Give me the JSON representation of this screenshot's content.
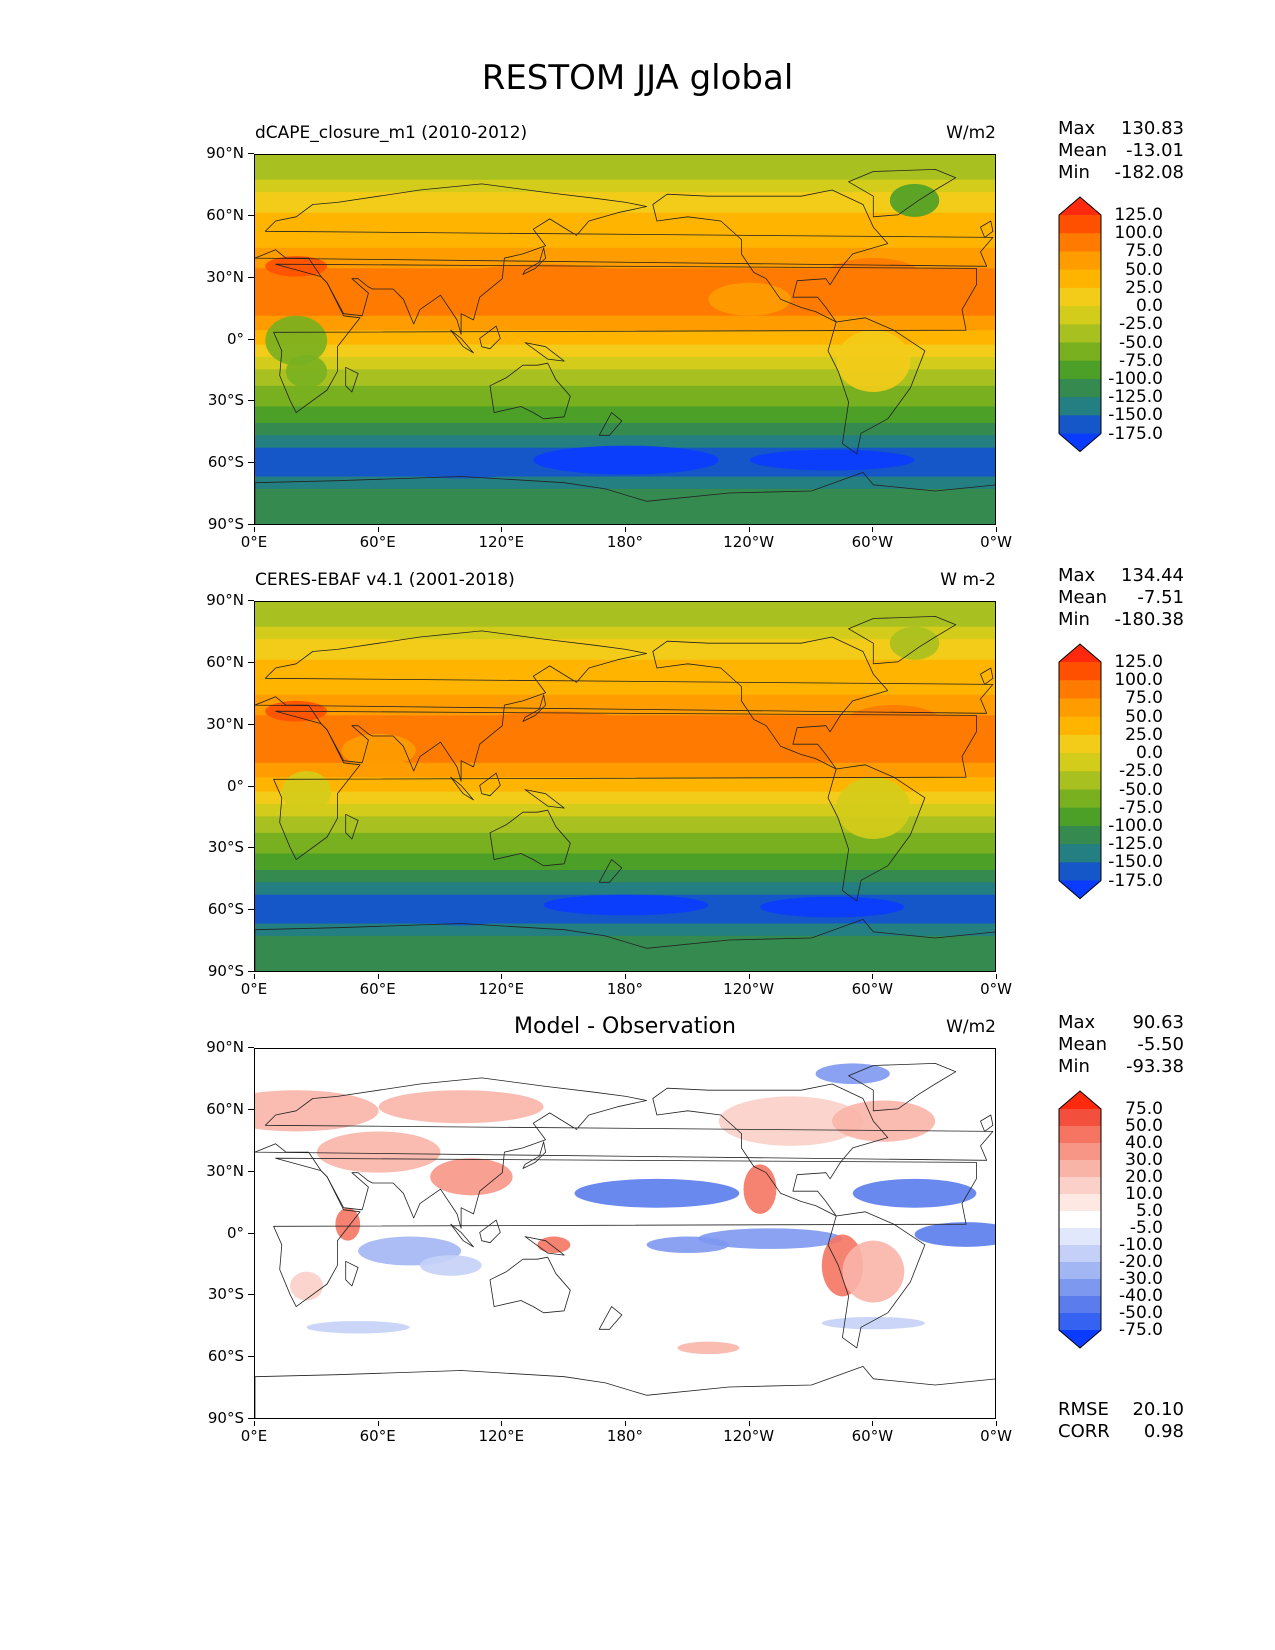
{
  "figure_title": "RESTOM JJA global",
  "x_ticks": [
    "0°E",
    "60°E",
    "120°E",
    "180°",
    "120°W",
    "60°W",
    "0°W"
  ],
  "y_ticks": [
    "90°N",
    "60°N",
    "30°N",
    "0°",
    "30°S",
    "60°S",
    "90°S"
  ],
  "panels": [
    {
      "title": "dCAPE_closure_m1 (2010-2012)",
      "center_title": "",
      "units": "W/m2",
      "stats": {
        "max_label": "Max",
        "max": "130.83",
        "mean_label": "Mean",
        "mean": "-13.01",
        "min_label": "Min",
        "min": "-182.08"
      },
      "extra_stats": null,
      "colorbar": {
        "labels": [
          "125.0",
          "100.0",
          "75.0",
          "50.0",
          "25.0",
          "0.0",
          "-25.0",
          "-50.0",
          "-75.0",
          "-100.0",
          "-125.0",
          "-150.0",
          "-175.0"
        ],
        "colors": [
          "#ff2a0d",
          "#ff5000",
          "#ff7a00",
          "#ff9c00",
          "#ffb400",
          "#f3cc1a",
          "#d4cc1a",
          "#a8c020",
          "#78b020",
          "#4ca028",
          "#358a50",
          "#247f82",
          "#1556c8",
          "#0a3cff"
        ]
      }
    },
    {
      "title": "CERES-EBAF v4.1 (2001-2018)",
      "center_title": "",
      "units": "W m-2",
      "stats": {
        "max_label": "Max",
        "max": "134.44",
        "mean_label": "Mean",
        "mean": "-7.51",
        "min_label": "Min",
        "min": "-180.38"
      },
      "extra_stats": null,
      "colorbar": {
        "labels": [
          "125.0",
          "100.0",
          "75.0",
          "50.0",
          "25.0",
          "0.0",
          "-25.0",
          "-50.0",
          "-75.0",
          "-100.0",
          "-125.0",
          "-150.0",
          "-175.0"
        ],
        "colors": [
          "#ff2a0d",
          "#ff5000",
          "#ff7a00",
          "#ff9c00",
          "#ffb400",
          "#f3cc1a",
          "#d4cc1a",
          "#a8c020",
          "#78b020",
          "#4ca028",
          "#358a50",
          "#247f82",
          "#1556c8",
          "#0a3cff"
        ]
      }
    },
    {
      "title": "",
      "center_title": "Model - Observation",
      "units": "W/m2",
      "stats": {
        "max_label": "Max",
        "max": "90.63",
        "mean_label": "Mean",
        "mean": "-5.50",
        "min_label": "Min",
        "min": "-93.38"
      },
      "extra_stats": {
        "rmse_label": "RMSE",
        "rmse": "20.10",
        "corr_label": "CORR",
        "corr": "0.98"
      },
      "colorbar": {
        "labels": [
          "75.0",
          "50.0",
          "40.0",
          "30.0",
          "20.0",
          "10.0",
          "5.0",
          "-5.0",
          "-10.0",
          "-20.0",
          "-30.0",
          "-40.0",
          "-50.0",
          "-75.0"
        ],
        "colors": [
          "#ff2a0d",
          "#f2503c",
          "#f57462",
          "#f79686",
          "#f9b4a8",
          "#fbd0c8",
          "#fde8e4",
          "#ffffff",
          "#e2e8fb",
          "#c4d0f7",
          "#a2b6f3",
          "#7d98ef",
          "#5a7cec",
          "#3562f0",
          "#0a3cff"
        ]
      }
    }
  ],
  "map_layers": {
    "restom_bands": [
      {
        "lat": 90,
        "c": "#a8c020"
      },
      {
        "lat": 78,
        "c": "#d4cc1a"
      },
      {
        "lat": 72,
        "c": "#f3cc1a"
      },
      {
        "lat": 62,
        "c": "#ffb400"
      },
      {
        "lat": 45,
        "c": "#ff9c00"
      },
      {
        "lat": 35,
        "c": "#ff7a00"
      },
      {
        "lat": 12,
        "c": "#ff9c00"
      },
      {
        "lat": 5,
        "c": "#ffb400"
      },
      {
        "lat": -2,
        "c": "#f3cc1a"
      },
      {
        "lat": -8,
        "c": "#d4cc1a"
      },
      {
        "lat": -14,
        "c": "#a8c020"
      },
      {
        "lat": -22,
        "c": "#78b020"
      },
      {
        "lat": -32,
        "c": "#4ca028"
      },
      {
        "lat": -40,
        "c": "#358a50"
      },
      {
        "lat": -46,
        "c": "#247f82"
      },
      {
        "lat": -52,
        "c": "#1556c8"
      },
      {
        "lat": -66,
        "c": "#247f82"
      },
      {
        "lat": -72,
        "c": "#358a50"
      }
    ]
  }
}
